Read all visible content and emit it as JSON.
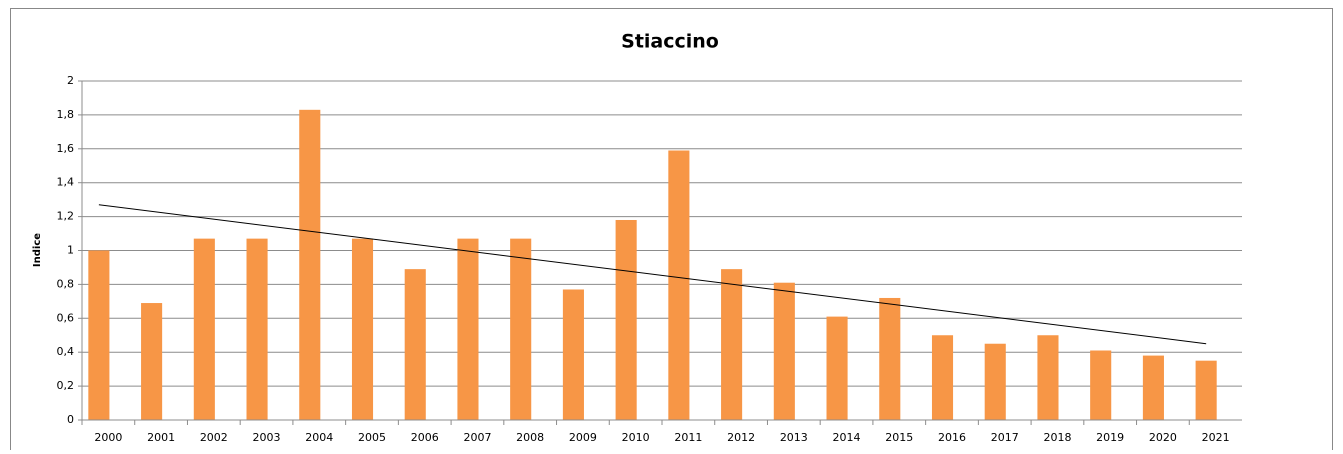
{
  "chart_data": {
    "type": "bar",
    "title": "Stiaccino",
    "y_label": "Indice",
    "categories": [
      "2000",
      "2001",
      "2002",
      "2003",
      "2004",
      "2005",
      "2006",
      "2007",
      "2008",
      "2009",
      "2010",
      "2011",
      "2012",
      "2013",
      "2014",
      "2015",
      "2016",
      "2017",
      "2018",
      "2019",
      "2020",
      "2021"
    ],
    "values": [
      1.0,
      0.69,
      1.07,
      1.07,
      1.83,
      1.07,
      0.89,
      1.07,
      1.07,
      0.77,
      1.18,
      1.59,
      0.89,
      0.81,
      0.61,
      0.72,
      0.5,
      0.45,
      0.5,
      0.41,
      0.38,
      0.35
    ],
    "color": "#f79646",
    "trend": [
      1.27,
      0.45
    ],
    "ylim": [
      0,
      2
    ],
    "yticks": [
      0,
      {
        "value": 0.2,
        "label": "0,2"
      },
      {
        "value": 0.4,
        "label": "0,4"
      },
      {
        "value": 0.6,
        "label": "0,6"
      },
      {
        "value": 0.8,
        "label": "0,8"
      },
      1,
      {
        "value": 1.2,
        "label": "1,2"
      },
      {
        "value": 1.4,
        "label": "1,4"
      },
      {
        "value": 1.6,
        "label": "1,6"
      },
      {
        "value": 1.8,
        "label": "1,8"
      },
      2
    ],
    "grid": true
  }
}
